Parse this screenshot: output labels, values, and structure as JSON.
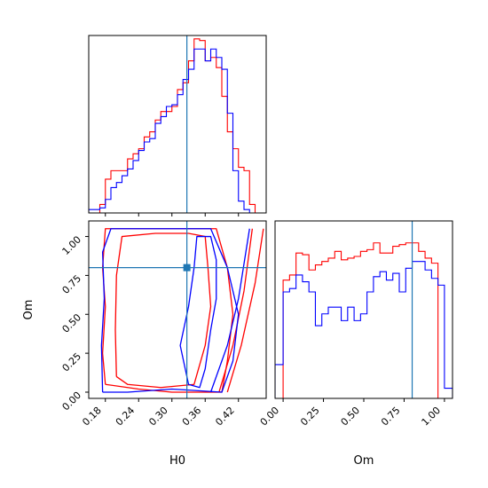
{
  "chart_data": [
    {
      "type": "step-histogram",
      "panel": "H0 marginal",
      "x_range": [
        0.15,
        0.47
      ],
      "truth": 0.327,
      "series": [
        {
          "color": "#ff0000",
          "edges": [
            0.15,
            0.16,
            0.17,
            0.18,
            0.19,
            0.2,
            0.21,
            0.22,
            0.23,
            0.24,
            0.25,
            0.26,
            0.27,
            0.28,
            0.29,
            0.3,
            0.31,
            0.32,
            0.33,
            0.34,
            0.35,
            0.36,
            0.37,
            0.38,
            0.39,
            0.4,
            0.41,
            0.42,
            0.43,
            0.44,
            0.45,
            0.46,
            0.47
          ],
          "counts": [
            0,
            0,
            0.5,
            2.0,
            2.5,
            2.5,
            2.5,
            3.2,
            3.5,
            3.8,
            4.5,
            4.8,
            5.5,
            6.0,
            6.0,
            6.3,
            7.3,
            7.7,
            9.0,
            10.3,
            10.2,
            9.0,
            9.2,
            8.6,
            6.9,
            4.8,
            3.8,
            2.7,
            2.5,
            0.5,
            0,
            0
          ]
        },
        {
          "color": "#0000ff",
          "edges": [
            0.15,
            0.16,
            0.17,
            0.18,
            0.19,
            0.2,
            0.21,
            0.22,
            0.23,
            0.24,
            0.25,
            0.26,
            0.27,
            0.28,
            0.29,
            0.3,
            0.31,
            0.32,
            0.33,
            0.34,
            0.35,
            0.36,
            0.37,
            0.38,
            0.39,
            0.4,
            0.41,
            0.42,
            0.43,
            0.44,
            0.45,
            0.46,
            0.47
          ],
          "counts": [
            0.2,
            0.2,
            0.3,
            0.8,
            1.5,
            1.8,
            2.2,
            2.6,
            3.1,
            3.7,
            4.2,
            4.4,
            5.3,
            5.7,
            6.3,
            6.4,
            7.0,
            7.9,
            8.5,
            9.7,
            9.7,
            9.0,
            9.7,
            9.2,
            8.5,
            5.9,
            2.5,
            0.7,
            0.2,
            0,
            0,
            0
          ]
        }
      ],
      "y_max": 10.5
    },
    {
      "type": "contour",
      "panel": "H0 vs Om",
      "x_range": [
        0.15,
        0.47
      ],
      "y_range": [
        -0.04,
        1.1
      ],
      "xlabel": "H0",
      "ylabel": "Om",
      "x_ticks": [
        "0.18",
        "0.24",
        "0.30",
        "0.36",
        "0.42"
      ],
      "y_ticks": [
        "0.00",
        "0.25",
        "0.50",
        "0.75",
        "1.00"
      ],
      "truth": [
        0.327,
        0.8
      ],
      "contours": [
        {
          "color": "#ff0000",
          "points": [
            [
              0.18,
              0.05
            ],
            [
              0.175,
              0.25
            ],
            [
              0.18,
              0.55
            ],
            [
              0.175,
              0.8
            ],
            [
              0.18,
              1.05
            ],
            [
              0.25,
              1.05
            ],
            [
              0.32,
              1.05
            ],
            [
              0.38,
              1.05
            ],
            [
              0.4,
              0.8
            ],
            [
              0.41,
              0.5
            ],
            [
              0.4,
              0.2
            ],
            [
              0.39,
              0.0
            ],
            [
              0.3,
              0.0
            ],
            [
              0.24,
              0.02
            ],
            [
              0.18,
              0.05
            ]
          ]
        },
        {
          "color": "#ff0000",
          "points": [
            [
              0.2,
              0.1
            ],
            [
              0.198,
              0.4
            ],
            [
              0.2,
              0.75
            ],
            [
              0.21,
              1.0
            ],
            [
              0.27,
              1.02
            ],
            [
              0.33,
              1.02
            ],
            [
              0.36,
              1.0
            ],
            [
              0.365,
              0.8
            ],
            [
              0.37,
              0.55
            ],
            [
              0.36,
              0.3
            ],
            [
              0.34,
              0.05
            ],
            [
              0.28,
              0.03
            ],
            [
              0.22,
              0.05
            ],
            [
              0.2,
              0.1
            ]
          ]
        },
        {
          "color": "#ff0000",
          "points": [
            [
              0.385,
              0.0
            ],
            [
              0.41,
              0.3
            ],
            [
              0.43,
              0.65
            ],
            [
              0.445,
              1.05
            ]
          ]
        },
        {
          "color": "#ff0000",
          "points": [
            [
              0.4,
              0.0
            ],
            [
              0.425,
              0.3
            ],
            [
              0.45,
              0.7
            ],
            [
              0.465,
              1.05
            ]
          ]
        },
        {
          "color": "#0000ff",
          "points": [
            [
              0.175,
              0.0
            ],
            [
              0.173,
              0.3
            ],
            [
              0.178,
              0.6
            ],
            [
              0.175,
              0.9
            ],
            [
              0.19,
              1.05
            ],
            [
              0.28,
              1.05
            ],
            [
              0.37,
              1.05
            ],
            [
              0.4,
              0.8
            ],
            [
              0.42,
              0.5
            ],
            [
              0.41,
              0.2
            ],
            [
              0.39,
              0.0
            ],
            [
              0.3,
              0.02
            ],
            [
              0.22,
              0.0
            ],
            [
              0.175,
              0.0
            ]
          ]
        },
        {
          "color": "#0000ff",
          "points": [
            [
              0.33,
              0.05
            ],
            [
              0.315,
              0.3
            ],
            [
              0.33,
              0.55
            ],
            [
              0.34,
              0.8
            ],
            [
              0.345,
              1.0
            ],
            [
              0.37,
              1.0
            ],
            [
              0.38,
              0.85
            ],
            [
              0.38,
              0.6
            ],
            [
              0.37,
              0.4
            ],
            [
              0.36,
              0.15
            ],
            [
              0.35,
              0.03
            ],
            [
              0.33,
              0.05
            ]
          ]
        },
        {
          "color": "#0000ff",
          "points": [
            [
              0.37,
              0.0
            ],
            [
              0.4,
              0.3
            ],
            [
              0.42,
              0.6
            ],
            [
              0.44,
              1.05
            ]
          ]
        }
      ]
    },
    {
      "type": "step-histogram",
      "panel": "Om marginal",
      "x_range": [
        -0.05,
        1.05
      ],
      "x_ticks": [
        "0.00",
        "0.25",
        "0.50",
        "0.75",
        "1.00"
      ],
      "xlabel": "Om",
      "truth": 0.8,
      "series": [
        {
          "color": "#ff0000",
          "edges": [
            -0.05,
            0.0,
            0.04,
            0.08,
            0.12,
            0.16,
            0.2,
            0.24,
            0.28,
            0.32,
            0.36,
            0.4,
            0.44,
            0.48,
            0.52,
            0.56,
            0.6,
            0.64,
            0.68,
            0.72,
            0.76,
            0.8,
            0.84,
            0.88,
            0.92,
            0.96,
            1.0,
            1.05
          ],
          "counts": [
            0,
            7.0,
            7.3,
            8.6,
            8.5,
            7.6,
            7.9,
            8.1,
            8.3,
            8.7,
            8.2,
            8.3,
            8.4,
            8.7,
            8.8,
            9.2,
            8.6,
            8.6,
            9.0,
            9.1,
            9.2,
            9.2,
            8.7,
            8.3,
            8.0,
            0,
            0
          ]
        },
        {
          "color": "#0000ff",
          "edges": [
            -0.05,
            0.0,
            0.04,
            0.08,
            0.12,
            0.16,
            0.2,
            0.24,
            0.28,
            0.32,
            0.36,
            0.4,
            0.44,
            0.48,
            0.52,
            0.56,
            0.6,
            0.64,
            0.68,
            0.72,
            0.76,
            0.8,
            0.84,
            0.88,
            0.92,
            0.96,
            1.0,
            1.05
          ],
          "counts": [
            2.0,
            6.3,
            6.5,
            7.3,
            6.9,
            6.3,
            4.3,
            5.0,
            5.4,
            5.4,
            4.6,
            5.4,
            4.6,
            5.0,
            6.3,
            7.2,
            7.5,
            7.0,
            7.4,
            6.3,
            7.7,
            8.1,
            8.1,
            7.6,
            7.1,
            6.7,
            0.6
          ]
        }
      ],
      "y_max": 10.5
    }
  ]
}
